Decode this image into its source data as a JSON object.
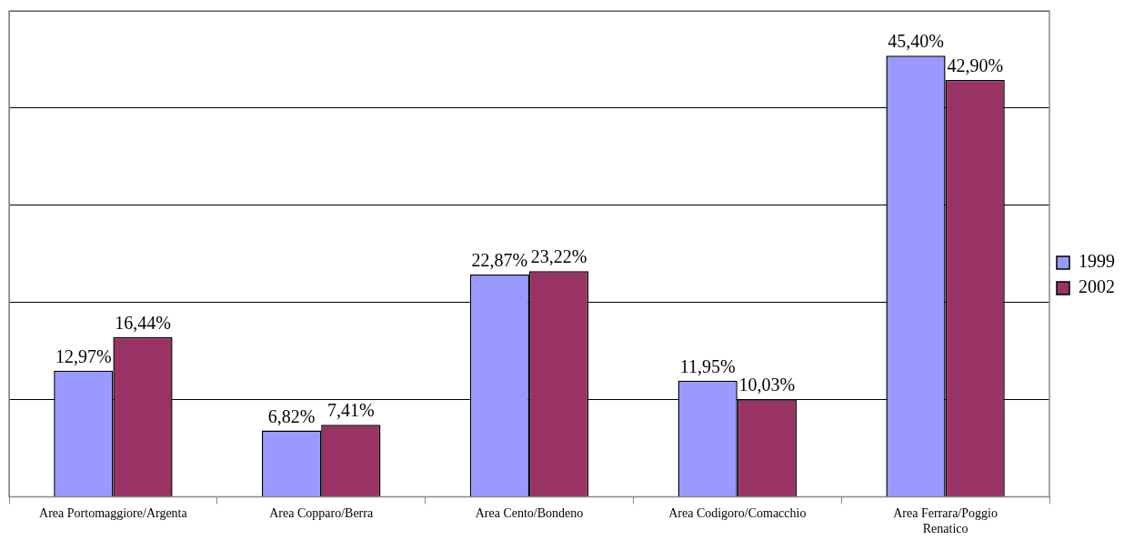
{
  "chart_data": {
    "type": "bar",
    "categories": [
      "Area Portomaggiore/Argenta",
      "Area Copparo/Berra",
      "Area Cento/Bondeno",
      "Area Codigoro/Comacchio",
      "Area Ferrara/Poggio Renatico"
    ],
    "series": [
      {
        "name": "1999",
        "color": "#9999ff",
        "values": [
          12.97,
          6.82,
          22.87,
          11.95,
          45.4
        ],
        "value_labels": [
          "12,97%",
          "6,82%",
          "22,87%",
          "11,95%",
          "45,40%"
        ]
      },
      {
        "name": "2002",
        "color": "#993366",
        "values": [
          16.44,
          7.41,
          23.22,
          10.03,
          42.9
        ],
        "value_labels": [
          "16,44%",
          "7,41%",
          "23,22%",
          "10,03%",
          "42,90%"
        ]
      }
    ],
    "ylim": [
      0,
      50
    ],
    "tick_labels": "x",
    "grid": "y",
    "legend": "right"
  }
}
